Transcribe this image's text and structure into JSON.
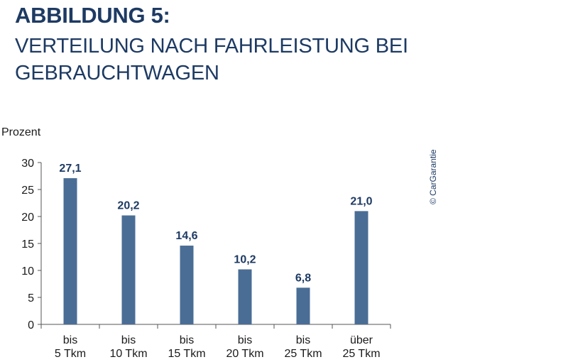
{
  "chart_data": {
    "type": "bar",
    "title": "ABBILDUNG 5:",
    "subtitle": "VERTEILUNG NACH FAHRLEISTUNG BEI GEBRAUCHTWAGEN",
    "ylabel": "Prozent",
    "xlabel": "",
    "ylim": [
      0,
      30
    ],
    "yticks": [
      0,
      5,
      10,
      15,
      20,
      25,
      30
    ],
    "categories": [
      [
        "bis",
        "5 Tkm"
      ],
      [
        "bis",
        "10 Tkm"
      ],
      [
        "bis",
        "15 Tkm"
      ],
      [
        "bis",
        "20 Tkm"
      ],
      [
        "bis",
        "25 Tkm"
      ],
      [
        "über",
        "25 Tkm"
      ]
    ],
    "values": [
      27.1,
      20.2,
      14.6,
      10.2,
      6.8,
      21.0
    ],
    "value_labels": [
      "27,1",
      "20,2",
      "14,6",
      "10,2",
      "6,8",
      "21,0"
    ],
    "bar_color": "#4a6d95",
    "label_color": "#1d3a63",
    "grid": false,
    "legend": "none"
  },
  "credit": "© CarGarantie"
}
